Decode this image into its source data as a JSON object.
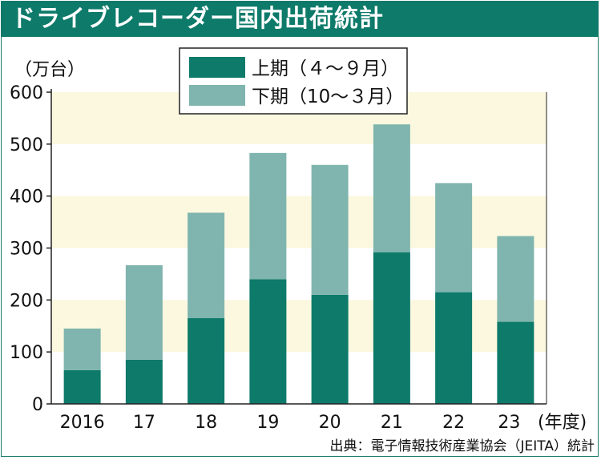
{
  "title": "ドライブレコーダー国内出荷統計",
  "source": "出典：電子情報技術産業協会（JEITA）統計",
  "colors": {
    "title_bg": "#0d7a6a",
    "first_half": "#0d7a6a",
    "second_half": "#7fb5ae",
    "band": "#fbf8df",
    "axis": "#222222"
  },
  "chart_data": {
    "type": "bar",
    "stacked": true,
    "categories": [
      "2016",
      "17",
      "18",
      "19",
      "20",
      "21",
      "22",
      "23"
    ],
    "x_unit": "(年度)",
    "y_unit": "（万台）",
    "ylim": [
      0,
      600
    ],
    "yticks": [
      0,
      100,
      200,
      300,
      400,
      500,
      600
    ],
    "legend_position": "top-center",
    "series": [
      {
        "name": "上期（４～９月）",
        "values": [
          65,
          85,
          165,
          240,
          210,
          292,
          215,
          158
        ]
      },
      {
        "name": "下期（10～３月）",
        "values": [
          80,
          182,
          203,
          243,
          250,
          246,
          210,
          165
        ]
      }
    ]
  }
}
